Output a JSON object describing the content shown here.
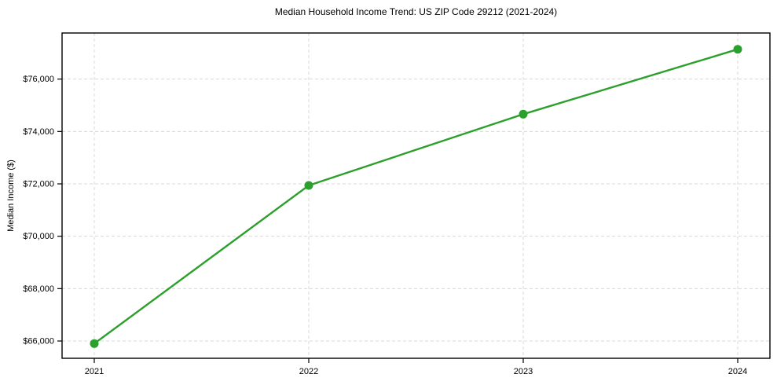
{
  "chart_data": {
    "type": "line",
    "title": "Median Household Income Trend: US ZIP Code 29212 (2021-2024)",
    "xlabel": "",
    "ylabel": "Median Income ($)",
    "x": [
      "2021",
      "2022",
      "2023",
      "2024"
    ],
    "series": [
      {
        "name": "Median household income",
        "values": [
          65900,
          71940,
          74660,
          77140
        ]
      }
    ],
    "yticks": [
      66000,
      68000,
      70000,
      72000,
      74000,
      76000
    ],
    "ytick_prefix": "$",
    "ylim": [
      65340,
      77760
    ],
    "grid": true,
    "grid_style": "dashed",
    "legend": false,
    "colors": {
      "line": "#2ca02c",
      "marker": "#2ca02c",
      "grid": "#d8d8d8",
      "axis": "#000000",
      "background": "#ffffff"
    }
  }
}
